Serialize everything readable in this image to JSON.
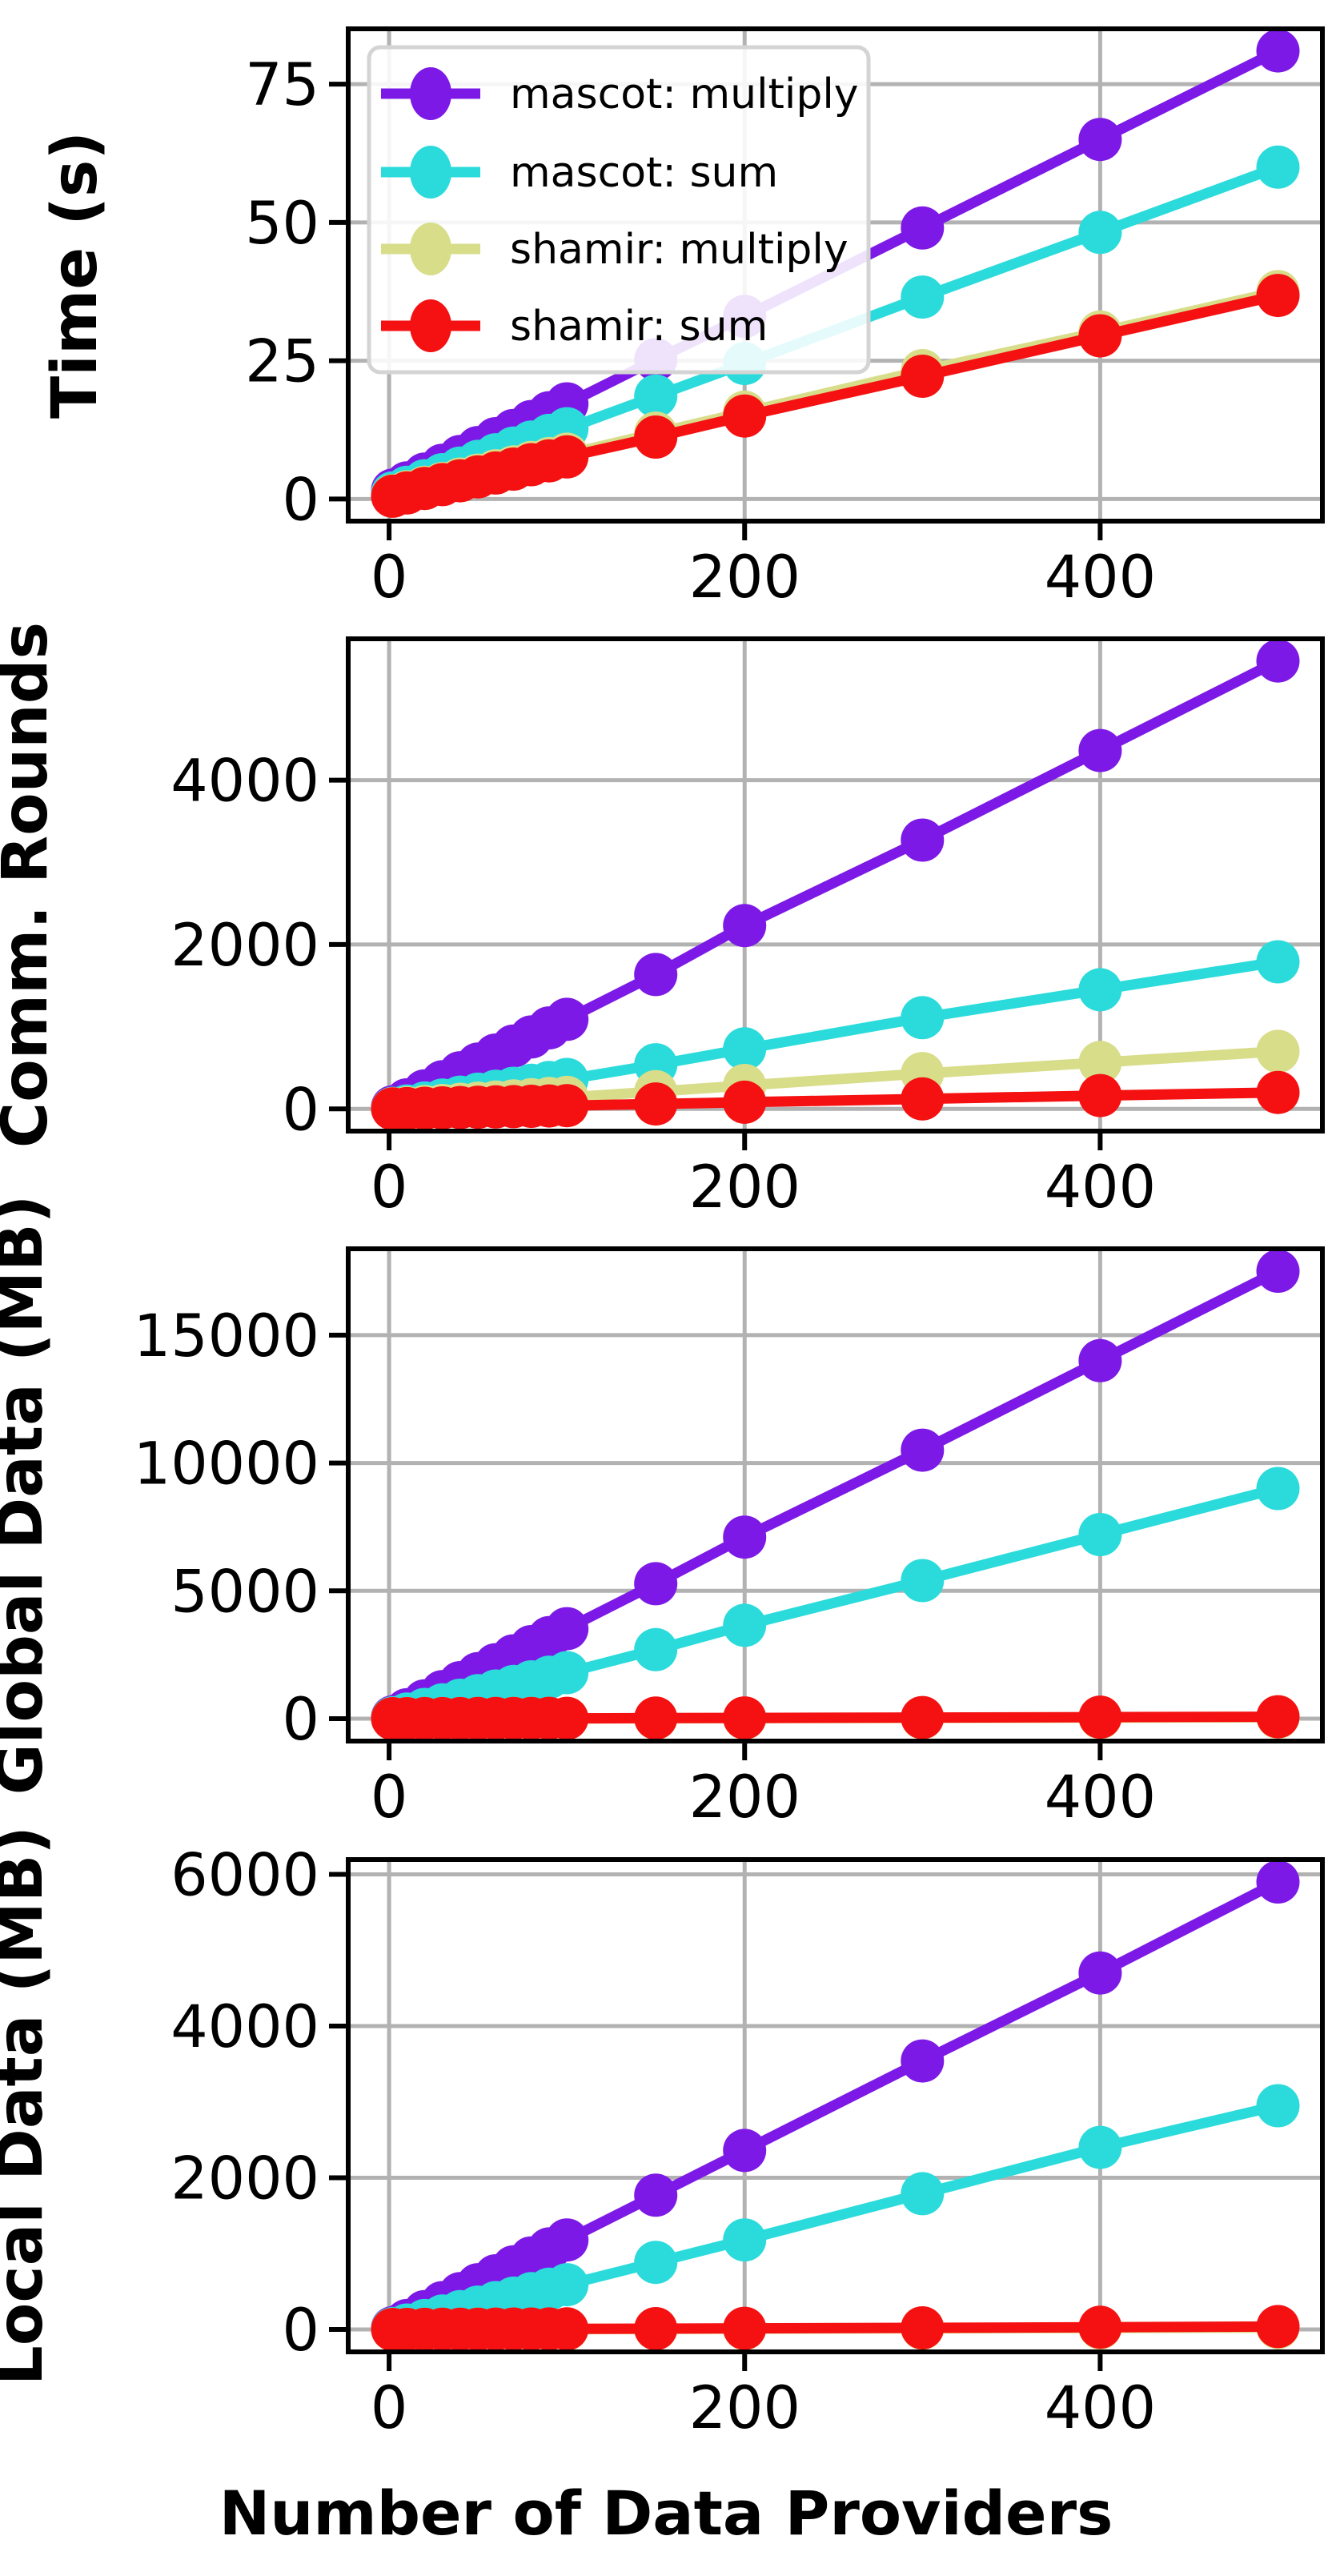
{
  "chart_data": {
    "type": "line",
    "x_label": "Number of Data Providers",
    "x": [
      2,
      10,
      20,
      30,
      40,
      50,
      60,
      70,
      80,
      90,
      100,
      150,
      200,
      300,
      400,
      500
    ],
    "x_ticks": [
      0,
      200,
      400
    ],
    "x_lim": [
      -23,
      525
    ],
    "grid": true,
    "legend_position": "upper-left-first-panel",
    "series_meta": [
      {
        "name": "mascot: multiply",
        "color": "#7d19e6"
      },
      {
        "name": "mascot: sum",
        "color": "#2bdbdb"
      },
      {
        "name": "shamir: multiply",
        "color": "#d8dd8a"
      },
      {
        "name": "shamir: sum",
        "color": "#f51111"
      }
    ],
    "panels": [
      {
        "ylabel": "Time (s)",
        "y_ticks": [
          0,
          25,
          50,
          75
        ],
        "y_lim": [
          -4,
          85
        ],
        "values": [
          [
            1.6,
            2.9,
            4.5,
            6.1,
            7.7,
            9.3,
            10.9,
            12.4,
            14.0,
            15.6,
            17.2,
            25.2,
            33.0,
            49.0,
            65.0,
            81.0
          ],
          [
            1.1,
            2.1,
            3.3,
            4.4,
            5.6,
            6.8,
            8.0,
            9.2,
            10.3,
            11.5,
            12.7,
            18.6,
            24.5,
            36.5,
            48.2,
            60.0
          ],
          [
            0.6,
            1.3,
            2.1,
            2.8,
            3.6,
            4.3,
            5.1,
            5.8,
            6.6,
            7.3,
            8.1,
            11.9,
            15.7,
            23.2,
            30.2,
            37.5
          ],
          [
            0.5,
            1.1,
            1.9,
            2.6,
            3.3,
            4.0,
            4.7,
            5.4,
            6.2,
            6.9,
            7.6,
            11.2,
            15.0,
            22.2,
            29.5,
            36.8
          ]
        ]
      },
      {
        "ylabel": "Comm. Rounds",
        "y_ticks": [
          0,
          2000,
          4000
        ],
        "y_lim": [
          -270,
          5720
        ],
        "values": [
          [
            25,
            110,
            220,
            330,
            440,
            545,
            655,
            765,
            875,
            985,
            1090,
            1635,
            2230,
            3270,
            4360,
            5450
          ],
          [
            8,
            36,
            72,
            108,
            143,
            179,
            215,
            251,
            287,
            322,
            358,
            537,
            730,
            1110,
            1450,
            1790
          ],
          [
            3,
            14,
            28,
            42,
            56,
            70,
            84,
            98,
            112,
            126,
            140,
            210,
            285,
            430,
            565,
            700
          ],
          [
            1,
            4,
            8,
            12,
            16,
            20,
            24,
            28,
            32,
            36,
            40,
            60,
            82,
            122,
            162,
            200
          ]
        ]
      },
      {
        "ylabel": "Global Data (MB)",
        "y_ticks": [
          0,
          5000,
          10000,
          15000
        ],
        "y_lim": [
          -875,
          18375
        ],
        "values": [
          [
            70,
            350,
            700,
            1060,
            1410,
            1760,
            2110,
            2460,
            2820,
            3170,
            3520,
            5280,
            7100,
            10500,
            14000,
            17500
          ],
          [
            36,
            180,
            360,
            540,
            720,
            900,
            1080,
            1260,
            1440,
            1620,
            1800,
            2700,
            3650,
            5400,
            7200,
            9000
          ],
          [
            0.2,
            1,
            2,
            3,
            4,
            5,
            6,
            7,
            8,
            9,
            10,
            15,
            20,
            30,
            40,
            50
          ],
          [
            0.3,
            1.5,
            3,
            4.5,
            6,
            7.5,
            9,
            10.5,
            12,
            13.5,
            15,
            22,
            30,
            45,
            60,
            75
          ]
        ]
      },
      {
        "ylabel": "Local Data (MB)",
        "y_ticks": [
          0,
          2000,
          4000,
          6000
        ],
        "y_lim": [
          -295,
          6195
        ],
        "values": [
          [
            24,
            118,
            236,
            354,
            472,
            590,
            708,
            826,
            944,
            1062,
            1180,
            1770,
            2360,
            3540,
            4700,
            5900
          ],
          [
            12,
            59,
            118,
            177,
            236,
            295,
            354,
            413,
            472,
            531,
            590,
            885,
            1180,
            1790,
            2400,
            2950
          ],
          [
            0.1,
            0.5,
            1,
            1.5,
            2,
            2.5,
            3,
            3.5,
            4,
            4.5,
            5,
            8,
            10,
            15,
            20,
            25
          ],
          [
            0.2,
            0.8,
            1.5,
            2.3,
            3,
            3.8,
            4.5,
            5.3,
            6,
            6.8,
            7.5,
            11,
            15,
            22,
            30,
            38
          ]
        ]
      }
    ],
    "style_colors": {
      "grid": "#b2b2b2",
      "spine": "#000000",
      "tick_label": "#000000",
      "legend_border": "#d4d4d4",
      "legend_fill": "#ffffff"
    }
  }
}
